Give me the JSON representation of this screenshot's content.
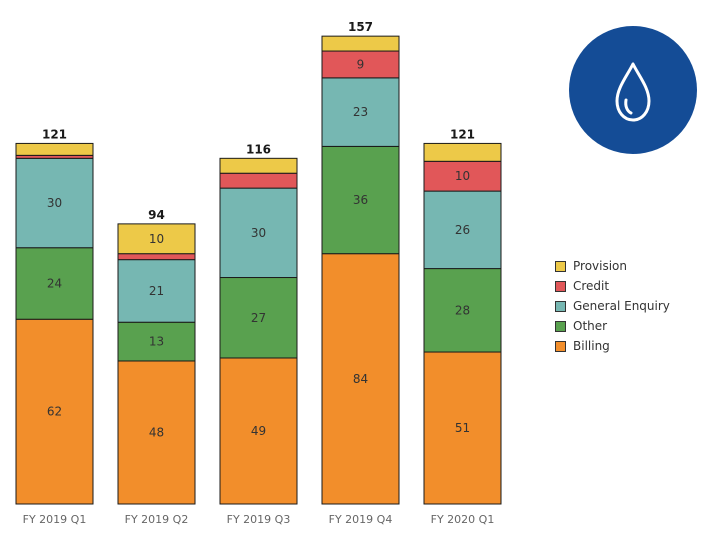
{
  "chart_data": {
    "type": "bar",
    "stacked": true,
    "categories": [
      "FY 2019 Q1",
      "FY 2019 Q2",
      "FY 2019 Q3",
      "FY 2019 Q4",
      "FY 2020 Q1"
    ],
    "totals": [
      121,
      94,
      116,
      157,
      121
    ],
    "series": [
      {
        "name": "Billing",
        "color": "#f28e2b",
        "values": [
          62,
          48,
          49,
          84,
          51
        ],
        "labels": [
          "62",
          "48",
          "49",
          "84",
          "51"
        ]
      },
      {
        "name": "Other",
        "color": "#59a14f",
        "values": [
          24,
          13,
          27,
          36,
          28
        ],
        "labels": [
          "24",
          "13",
          "27",
          "36",
          "28"
        ]
      },
      {
        "name": "General Enquiry",
        "color": "#76b7b2",
        "values": [
          30,
          21,
          30,
          23,
          26
        ],
        "labels": [
          "30",
          "21",
          "30",
          "23",
          "26"
        ]
      },
      {
        "name": "Credit",
        "color": "#e15759",
        "values": [
          1,
          2,
          5,
          9,
          10
        ],
        "labels": [
          "",
          "",
          "",
          "9",
          "10"
        ]
      },
      {
        "name": "Provision",
        "color": "#edc948",
        "values": [
          4,
          10,
          5,
          5,
          6
        ],
        "labels": [
          "",
          "10",
          "",
          "",
          ""
        ]
      }
    ],
    "legend_order": [
      "Provision",
      "Credit",
      "General Enquiry",
      "Other",
      "Billing"
    ],
    "ylim": [
      0,
      160
    ],
    "grid": false,
    "legend_position": "right"
  },
  "icon": {
    "name": "water-drop-icon",
    "badge_color": "#144c96"
  }
}
